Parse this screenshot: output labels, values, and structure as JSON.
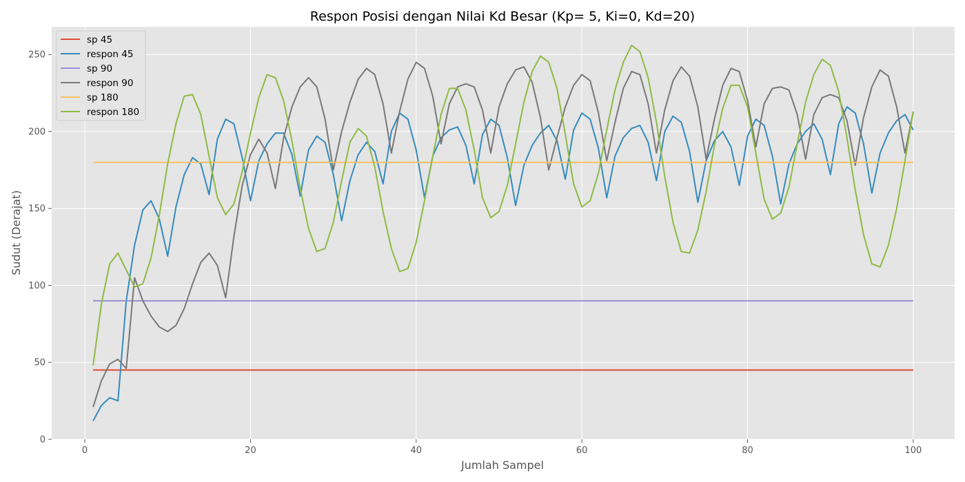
{
  "chart_data": {
    "type": "line",
    "title": "Respon Posisi dengan Nilai Kd Besar (Kp= 5, Ki=0, Kd=20)",
    "xlabel": "Jumlah Sampel",
    "ylabel": "Sudut (Derajat)",
    "xlim": [
      -4,
      105
    ],
    "ylim": [
      0,
      268
    ],
    "xticks": [
      0,
      20,
      40,
      60,
      80,
      100
    ],
    "yticks": [
      0,
      50,
      100,
      150,
      200,
      250
    ],
    "grid": true,
    "legend_position": "top-left",
    "background": "#e5e5e5",
    "series": [
      {
        "name": "sp 45",
        "color": "#e24a33",
        "x_start": 1,
        "x_end": 100,
        "constant": 45
      },
      {
        "name": "respon 45",
        "color": "#348abd",
        "x_start": 1,
        "values": [
          12,
          22,
          27,
          25,
          90,
          126,
          149,
          155,
          143,
          119,
          151,
          172,
          183,
          179,
          159,
          195,
          208,
          205,
          183,
          155,
          181,
          192,
          199,
          199,
          185,
          158,
          188,
          197,
          193,
          172,
          142,
          168,
          185,
          193,
          187,
          166,
          200,
          212,
          208,
          188,
          157,
          184,
          196,
          201,
          203,
          191,
          166,
          198,
          208,
          204,
          183,
          152,
          178,
          191,
          199,
          204,
          194,
          169,
          201,
          212,
          208,
          189,
          157,
          184,
          196,
          202,
          204,
          193,
          168,
          200,
          210,
          206,
          187,
          154,
          181,
          194,
          200,
          190,
          165,
          197,
          208,
          204,
          184,
          153,
          179,
          192,
          200,
          205,
          195,
          172,
          205,
          216,
          212,
          192,
          160,
          186,
          199,
          207,
          211,
          201
        ]
      },
      {
        "name": "sp 90",
        "color": "#988ed5",
        "x_start": 1,
        "x_end": 100,
        "constant": 90
      },
      {
        "name": "respon 90",
        "color": "#777777",
        "x_start": 1,
        "values": [
          21,
          38,
          49,
          52,
          46,
          105,
          90,
          80,
          73,
          70,
          74,
          85,
          101,
          115,
          121,
          113,
          92,
          132,
          165,
          185,
          195,
          186,
          163,
          196,
          216,
          229,
          235,
          229,
          208,
          175,
          200,
          219,
          234,
          241,
          237,
          218,
          186,
          213,
          234,
          245,
          241,
          223,
          192,
          218,
          229,
          231,
          229,
          214,
          186,
          216,
          231,
          240,
          242,
          232,
          209,
          175,
          196,
          216,
          230,
          237,
          233,
          212,
          181,
          206,
          228,
          239,
          237,
          218,
          186,
          214,
          233,
          242,
          236,
          216,
          182,
          208,
          230,
          241,
          239,
          220,
          190,
          218,
          228,
          229,
          227,
          211,
          182,
          211,
          222,
          224,
          222,
          207,
          178,
          209,
          229,
          240,
          236,
          216,
          186,
          213
        ]
      },
      {
        "name": "sp 180",
        "color": "#fbc15e",
        "x_start": 1,
        "x_end": 100,
        "constant": 180
      },
      {
        "name": "respon 180",
        "color": "#8eba42",
        "x_start": 1,
        "values": [
          48,
          88,
          114,
          121,
          110,
          99,
          101,
          118,
          146,
          179,
          205,
          223,
          224,
          211,
          184,
          157,
          146,
          153,
          174,
          199,
          222,
          237,
          235,
          220,
          194,
          163,
          137,
          122,
          124,
          141,
          168,
          193,
          202,
          197,
          177,
          148,
          124,
          109,
          111,
          128,
          155,
          184,
          211,
          228,
          228,
          214,
          188,
          157,
          144,
          148,
          165,
          192,
          219,
          239,
          249,
          245,
          228,
          198,
          166,
          151,
          155,
          173,
          201,
          227,
          245,
          256,
          252,
          235,
          206,
          171,
          141,
          122,
          121,
          136,
          161,
          191,
          215,
          230,
          230,
          216,
          186,
          156,
          143,
          147,
          164,
          192,
          219,
          237,
          247,
          243,
          226,
          196,
          162,
          133,
          114,
          112,
          126,
          150,
          181,
          213
        ]
      }
    ]
  }
}
